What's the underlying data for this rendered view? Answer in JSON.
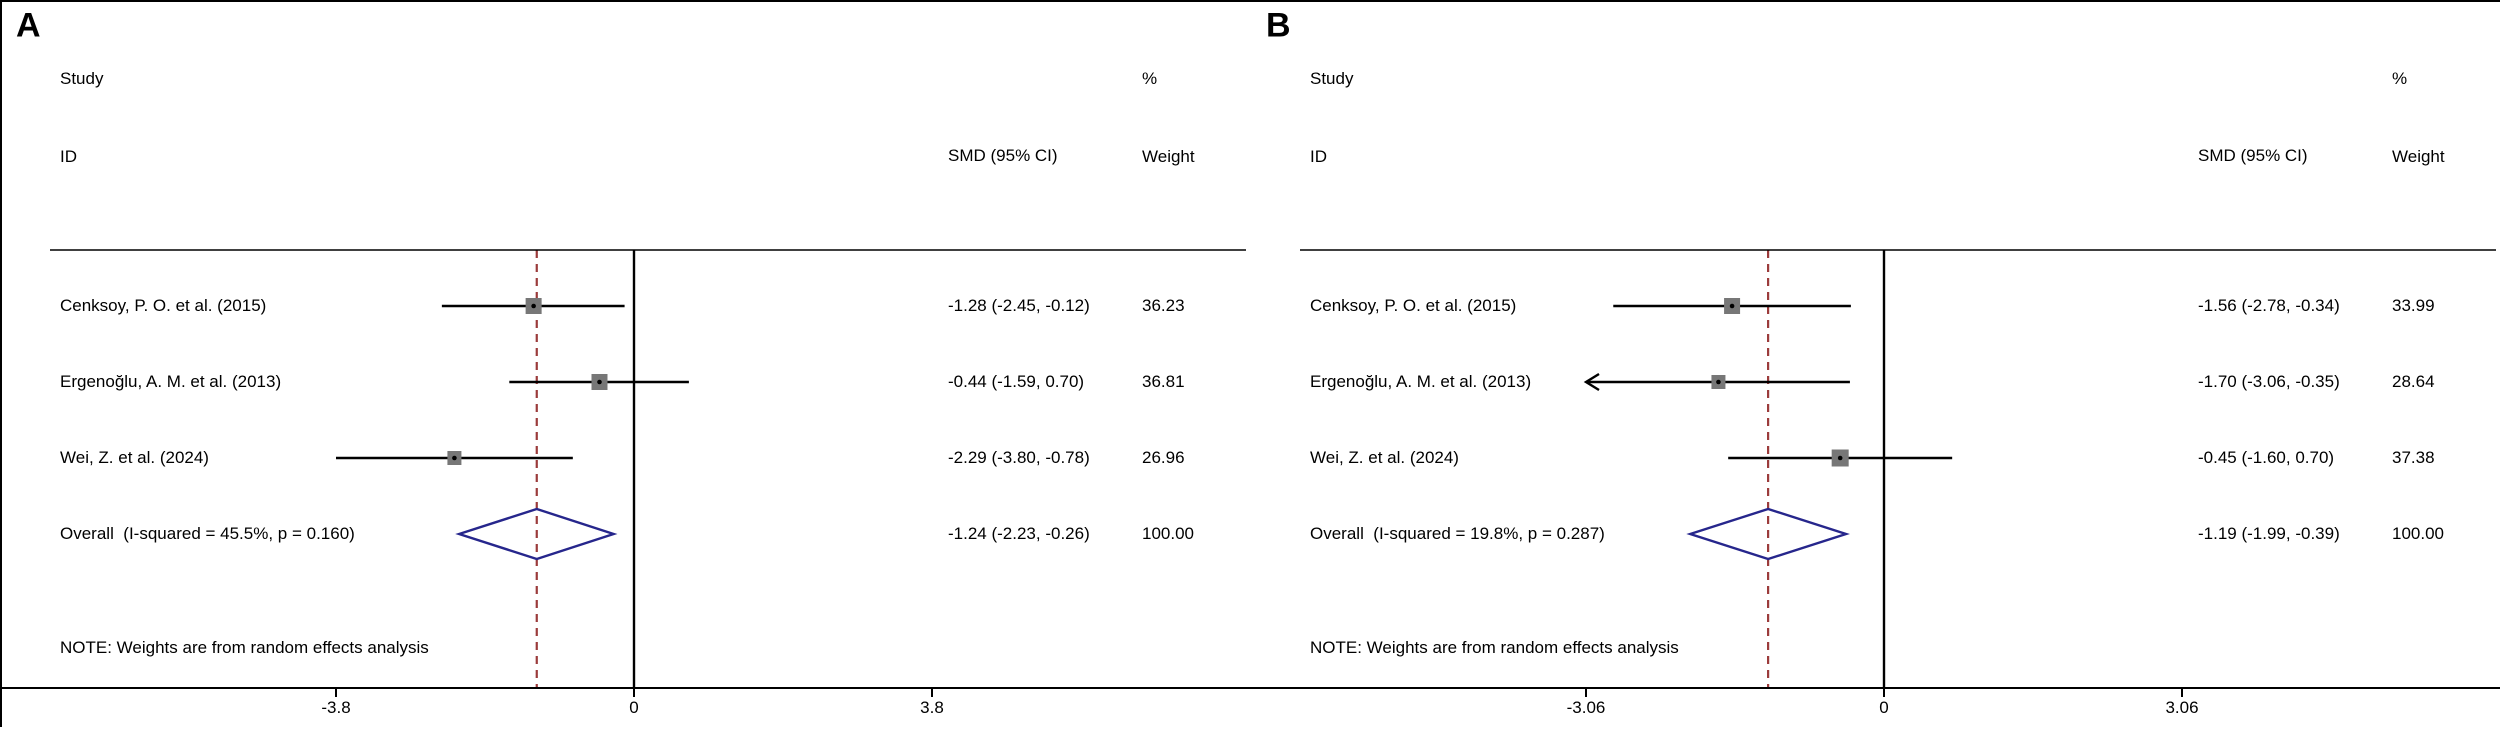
{
  "figure": {
    "background": "#ffffff",
    "border_color": "#000000"
  },
  "colors": {
    "text": "#000000",
    "ci_line": "#000000",
    "marker_fill": "#777777",
    "marker_dot": "#000000",
    "diamond_stroke": "#26268c",
    "overall_dashed": "#9b3b3b",
    "zero_line": "#000000",
    "rule": "#000000"
  },
  "headers": {
    "study": "Study",
    "id": "ID",
    "percent": "%",
    "smd_ci": "SMD (95% CI)",
    "weight": "Weight"
  },
  "note": "NOTE: Weights are from random effects analysis",
  "chart_data": [
    {
      "type": "forest",
      "panel_label": "A",
      "effect_measure": "SMD (95% CI)",
      "model": "random effects",
      "xlim": [
        -3.8,
        3.8
      ],
      "axis_ticks": [
        -3.8,
        0,
        3.8
      ],
      "axis_tick_labels": [
        "-3.8",
        "0",
        "3.8"
      ],
      "studies": [
        {
          "label": "Cenksoy, P. O. et al. (2015)",
          "est": -1.28,
          "lo": -2.45,
          "hi": -0.12,
          "ci_text": "-1.28 (-2.45, -0.12)",
          "weight": 36.23,
          "weight_text": "36.23",
          "clipped_lo": false
        },
        {
          "label": "Ergenoğlu, A. M. et al. (2013)",
          "est": -0.44,
          "lo": -1.59,
          "hi": 0.7,
          "ci_text": "-0.44 (-1.59, 0.70)",
          "weight": 36.81,
          "weight_text": "36.81",
          "clipped_lo": false
        },
        {
          "label": "Wei, Z. et al. (2024)",
          "est": -2.29,
          "lo": -3.8,
          "hi": -0.78,
          "ci_text": "-2.29 (-3.80, -0.78)",
          "weight": 26.96,
          "weight_text": "26.96",
          "clipped_lo": false
        }
      ],
      "overall": {
        "label": "Overall  (I-squared = 45.5%, p = 0.160)",
        "est": -1.24,
        "lo": -2.23,
        "hi": -0.26,
        "ci_text": "-1.24 (-2.23, -0.26)",
        "weight_text": "100.00"
      }
    },
    {
      "type": "forest",
      "panel_label": "B",
      "effect_measure": "SMD (95% CI)",
      "model": "random effects",
      "xlim": [
        -3.06,
        3.06
      ],
      "axis_ticks": [
        -3.06,
        0,
        3.06
      ],
      "axis_tick_labels": [
        "-3.06",
        "0",
        "3.06"
      ],
      "studies": [
        {
          "label": "Cenksoy, P. O. et al. (2015)",
          "est": -1.56,
          "lo": -2.78,
          "hi": -0.34,
          "ci_text": "-1.56 (-2.78, -0.34)",
          "weight": 33.99,
          "weight_text": "33.99",
          "clipped_lo": false
        },
        {
          "label": "Ergenoğlu, A. M. et al. (2013)",
          "est": -1.7,
          "lo": -3.06,
          "hi": -0.35,
          "ci_text": "-1.70 (-3.06, -0.35)",
          "weight": 28.64,
          "weight_text": "28.64",
          "clipped_lo": true
        },
        {
          "label": "Wei, Z. et al. (2024)",
          "est": -0.45,
          "lo": -1.6,
          "hi": 0.7,
          "ci_text": "-0.45 (-1.60, 0.70)",
          "weight": 37.38,
          "weight_text": "37.38",
          "clipped_lo": false
        }
      ],
      "overall": {
        "label": "Overall  (I-squared = 19.8%, p = 0.287)",
        "est": -1.19,
        "lo": -1.99,
        "hi": -0.39,
        "ci_text": "-1.19 (-1.99, -0.39)",
        "weight_text": "100.00"
      }
    }
  ]
}
